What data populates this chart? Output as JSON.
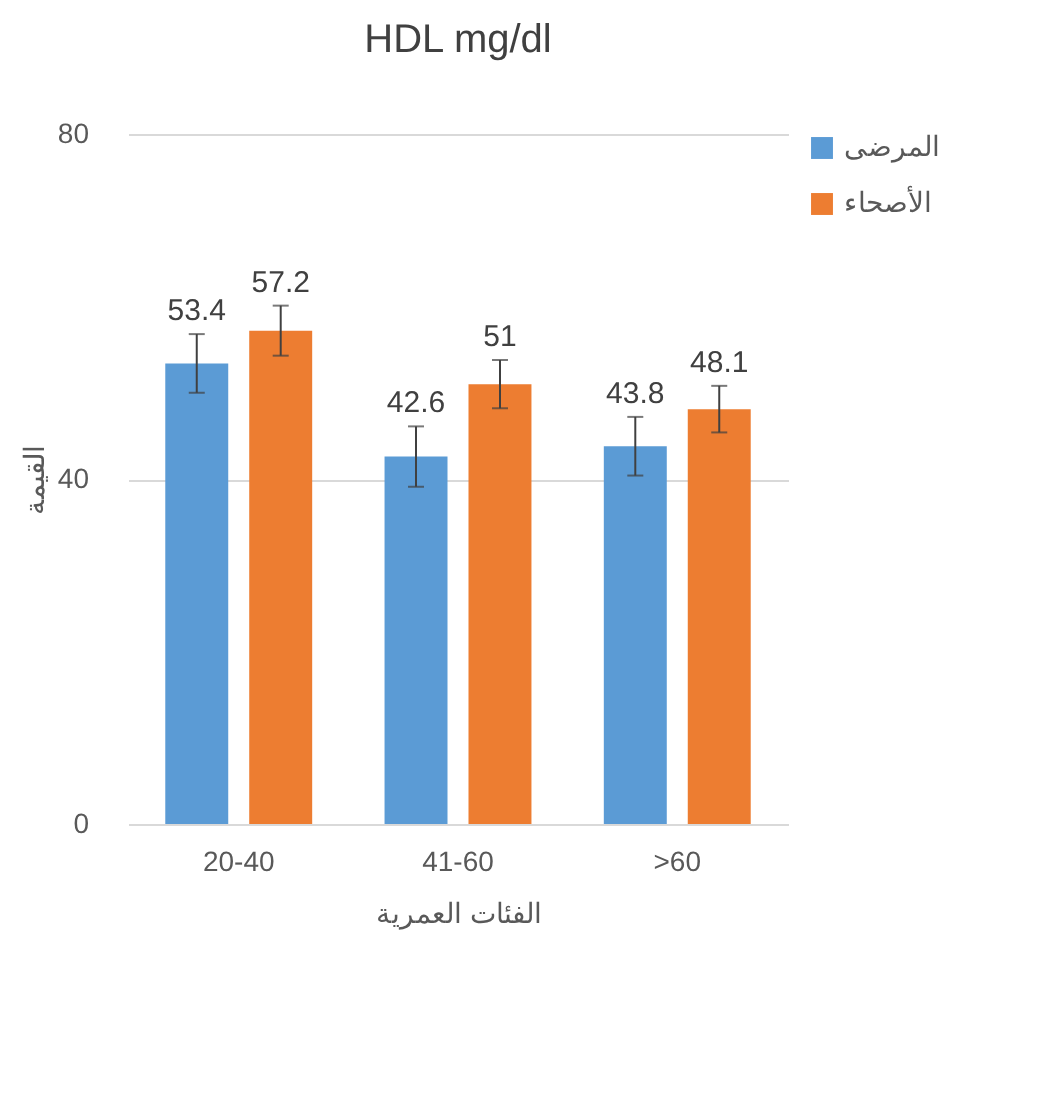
{
  "chart_data": {
    "type": "bar",
    "title": "HDL mg/dl",
    "xlabel": "الفئات العمرية",
    "ylabel": "القيمة",
    "categories": [
      "20-40",
      "41-60",
      ">60"
    ],
    "series": [
      {
        "name": "المرضى",
        "color": "#5b9bd5",
        "values": [
          53.4,
          42.6,
          43.8
        ],
        "errors": [
          3.4,
          3.5,
          3.4
        ]
      },
      {
        "name": "الأصحاء",
        "color": "#ed7d31",
        "values": [
          57.2,
          51,
          48.1
        ],
        "errors": [
          2.9,
          2.8,
          2.7
        ]
      }
    ],
    "ylim": [
      0,
      80
    ],
    "yticks": [
      0,
      40,
      80
    ],
    "grid": "y",
    "legend": "right",
    "data_labels": true
  }
}
